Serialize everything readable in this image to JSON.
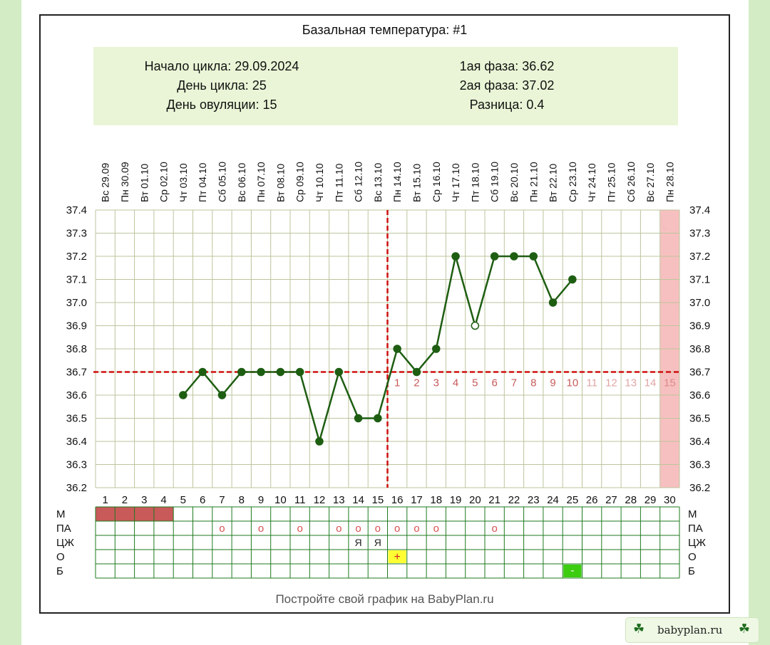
{
  "title": "Базальная температура: #1",
  "summary": {
    "cycle_start": "Начало цикла: 29.09.2024",
    "cycle_day": "День цикла: 25",
    "ovulation_day": "День овуляции: 15",
    "phase1": "1ая фаза: 36.62",
    "phase2": "2ая фаза: 37.02",
    "difference": "Разница: 0.4"
  },
  "footer": "Постройте свой график на BabyPlan.ru",
  "site_badge": "babyplan.ru",
  "colors": {
    "line": "#1e5e12",
    "grid": "#bcc59d",
    "dashed": "#d01010",
    "phase_numbers": "#c85a5a",
    "menses": "#c85a5a",
    "period_band": "#f7c0c0",
    "o_marker": "#d85050",
    "plus_box": "#ffff33",
    "minus_box": "#3ccc10",
    "table_grid": "#1e7a1e"
  },
  "chart_data": {
    "type": "line",
    "title": "Базальная температура: #1",
    "dates": [
      "29.09",
      "30.09",
      "01.10",
      "02.10",
      "03.10",
      "04.10",
      "05.10",
      "06.10",
      "07.10",
      "08.10",
      "09.10",
      "10.10",
      "11.10",
      "12.10",
      "13.10",
      "14.10",
      "15.10",
      "16.10",
      "17.10",
      "18.10",
      "19.10",
      "20.10",
      "21.10",
      "22.10",
      "23.10",
      "24.10",
      "25.10",
      "26.10",
      "27.10",
      "28.10"
    ],
    "weekdays": [
      "Вс",
      "Пн",
      "Вт",
      "Ср",
      "Чт",
      "Пт",
      "Сб",
      "Вс",
      "Пн",
      "Вт",
      "Ср",
      "Чт",
      "Пт",
      "Сб",
      "Вс",
      "Пн",
      "Вт",
      "Ср",
      "Чт",
      "Пт",
      "Сб",
      "Вс",
      "Пн",
      "Вт",
      "Ср",
      "Чт",
      "Пт",
      "Сб",
      "Вс",
      "Пн"
    ],
    "days": [
      "1",
      "2",
      "3",
      "4",
      "5",
      "6",
      "7",
      "8",
      "9",
      "10",
      "11",
      "12",
      "13",
      "14",
      "15",
      "16",
      "17",
      "18",
      "19",
      "20",
      "21",
      "22",
      "23",
      "24",
      "25",
      "26",
      "27",
      "28",
      "29",
      "30"
    ],
    "y_ticks": [
      "37.4",
      "37.3",
      "37.2",
      "37.1",
      "37.0",
      "36.9",
      "36.8",
      "36.7",
      "36.6",
      "36.5",
      "36.4",
      "36.3",
      "36.2"
    ],
    "ylim": [
      36.2,
      37.4
    ],
    "series": [
      {
        "points": [
          {
            "day": 5,
            "temp": 36.6
          },
          {
            "day": 6,
            "temp": 36.7
          },
          {
            "day": 7,
            "temp": 36.6
          },
          {
            "day": 8,
            "temp": 36.7
          },
          {
            "day": 9,
            "temp": 36.7
          },
          {
            "day": 10,
            "temp": 36.7
          },
          {
            "day": 11,
            "temp": 36.7
          },
          {
            "day": 12,
            "temp": 36.4
          },
          {
            "day": 13,
            "temp": 36.7
          },
          {
            "day": 14,
            "temp": 36.5
          },
          {
            "day": 15,
            "temp": 36.5
          },
          {
            "day": 16,
            "temp": 36.8
          },
          {
            "day": 17,
            "temp": 36.7
          },
          {
            "day": 18,
            "temp": 36.8
          },
          {
            "day": 19,
            "temp": 37.2
          },
          {
            "day": 20,
            "temp": 36.9,
            "hollow": true
          },
          {
            "day": 21,
            "temp": 37.2
          },
          {
            "day": 22,
            "temp": 37.2
          },
          {
            "day": 23,
            "temp": 37.2
          },
          {
            "day": 24,
            "temp": 37.0
          },
          {
            "day": 25,
            "temp": 37.1
          }
        ]
      }
    ],
    "coverline": 36.7,
    "ovulation_day": 15,
    "post_ovulation_labels": [
      "1",
      "2",
      "3",
      "4",
      "5",
      "6",
      "7",
      "8",
      "9",
      "10",
      "11",
      "12",
      "13",
      "14",
      "15"
    ],
    "post_ovulation_labels_shown_through": 10,
    "expected_period_day": 30,
    "moon_icon": "crescent-moon-icon",
    "table": {
      "row_labels": [
        "М",
        "ПА",
        "ЦЖ",
        "О",
        "Б"
      ],
      "menses_days": [
        1,
        2,
        3,
        4
      ],
      "pa_days": [
        7,
        9,
        11,
        13,
        14,
        15,
        16,
        17,
        18,
        21
      ],
      "pa_mark": "o",
      "cz_days": [
        14,
        15
      ],
      "cz_mark": "Я",
      "o_day": 16,
      "o_mark": "+",
      "b_day": 25,
      "b_mark": "-"
    }
  }
}
